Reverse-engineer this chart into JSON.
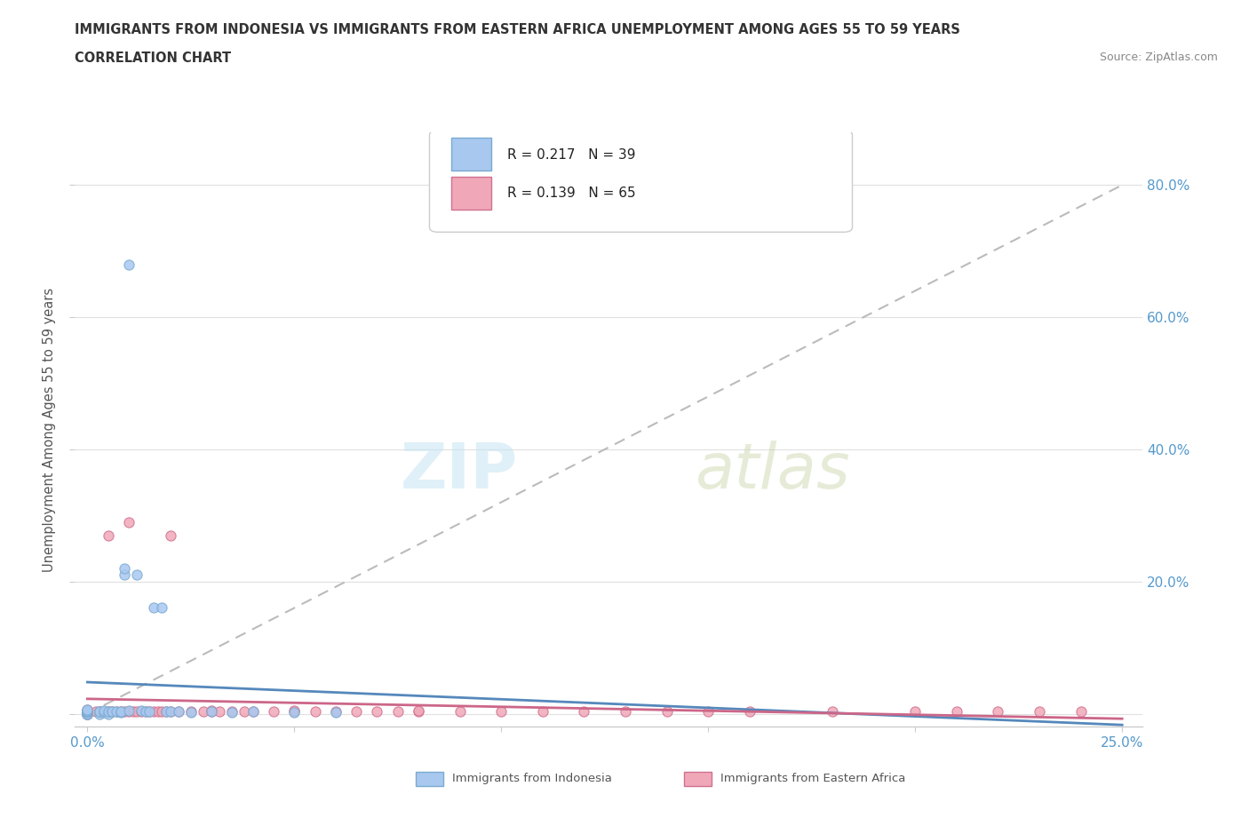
{
  "title_line1": "IMMIGRANTS FROM INDONESIA VS IMMIGRANTS FROM EASTERN AFRICA UNEMPLOYMENT AMONG AGES 55 TO 59 YEARS",
  "title_line2": "CORRELATION CHART",
  "source_text": "Source: ZipAtlas.com",
  "ylabel": "Unemployment Among Ages 55 to 59 years",
  "xlim": [
    -0.003,
    0.255
  ],
  "ylim": [
    -0.02,
    0.88
  ],
  "x_ticks": [
    0.0,
    0.25
  ],
  "x_tick_labels": [
    "0.0%",
    "25.0%"
  ],
  "y_ticks": [
    0.0,
    0.2,
    0.4,
    0.6,
    0.8
  ],
  "y_tick_labels_right": [
    "",
    "20.0%",
    "40.0%",
    "60.0%",
    "80.0%"
  ],
  "r_indonesia": 0.217,
  "n_indonesia": 39,
  "r_eastern_africa": 0.139,
  "n_eastern_africa": 65,
  "color_indonesia": "#a8c8f0",
  "color_eastern_africa": "#f0a8b8",
  "edge_indonesia": "#7aaad0",
  "edge_eastern_africa": "#d07090",
  "legend_indonesia": "Immigrants from Indonesia",
  "legend_eastern_africa": "Immigrants from Eastern Africa",
  "watermark_zip": "ZIP",
  "watermark_atlas": "atlas",
  "trend_line_color_indonesia": "#5588bb",
  "trend_line_color_eastern_africa": "#cc6688",
  "diagonal_line_color": "#bbbbbb",
  "background_color": "#ffffff",
  "grid_color": "#e0e0e0",
  "tick_color": "#5599cc",
  "title_color": "#333333",
  "indo_x": [
    0.0,
    0.0,
    0.0,
    0.0,
    0.0,
    0.0,
    0.0,
    0.0,
    0.003,
    0.003,
    0.003,
    0.004,
    0.004,
    0.005,
    0.005,
    0.006,
    0.006,
    0.007,
    0.008,
    0.008,
    0.009,
    0.009,
    0.01,
    0.012,
    0.013,
    0.014,
    0.015,
    0.016,
    0.018,
    0.019,
    0.02,
    0.022,
    0.025,
    0.03,
    0.035,
    0.04,
    0.05,
    0.06,
    0.01
  ],
  "indo_y": [
    0.0,
    0.0,
    0.0,
    0.002,
    0.003,
    0.004,
    0.005,
    0.006,
    0.0,
    0.003,
    0.004,
    0.002,
    0.005,
    0.0,
    0.003,
    0.003,
    0.004,
    0.004,
    0.002,
    0.003,
    0.21,
    0.22,
    0.005,
    0.21,
    0.005,
    0.003,
    0.004,
    0.16,
    0.16,
    0.003,
    0.004,
    0.003,
    0.002,
    0.003,
    0.002,
    0.003,
    0.002,
    0.002,
    0.68
  ],
  "ea_x": [
    0.0,
    0.0,
    0.0,
    0.0,
    0.0,
    0.0,
    0.0,
    0.0,
    0.0,
    0.0,
    0.002,
    0.003,
    0.004,
    0.005,
    0.006,
    0.007,
    0.008,
    0.009,
    0.01,
    0.011,
    0.012,
    0.013,
    0.014,
    0.015,
    0.016,
    0.017,
    0.018,
    0.019,
    0.02,
    0.022,
    0.025,
    0.028,
    0.03,
    0.032,
    0.035,
    0.038,
    0.04,
    0.045,
    0.05,
    0.055,
    0.06,
    0.065,
    0.07,
    0.075,
    0.08,
    0.09,
    0.1,
    0.11,
    0.12,
    0.13,
    0.14,
    0.15,
    0.16,
    0.18,
    0.2,
    0.21,
    0.22,
    0.23,
    0.24,
    0.005,
    0.01,
    0.02,
    0.03,
    0.05,
    0.08
  ],
  "ea_y": [
    0.0,
    0.0,
    0.0,
    0.002,
    0.003,
    0.003,
    0.004,
    0.004,
    0.005,
    0.006,
    0.003,
    0.003,
    0.004,
    0.003,
    0.004,
    0.004,
    0.003,
    0.004,
    0.003,
    0.004,
    0.003,
    0.004,
    0.003,
    0.004,
    0.003,
    0.004,
    0.003,
    0.004,
    0.003,
    0.004,
    0.003,
    0.004,
    0.004,
    0.003,
    0.004,
    0.003,
    0.004,
    0.003,
    0.004,
    0.004,
    0.004,
    0.003,
    0.004,
    0.003,
    0.004,
    0.003,
    0.004,
    0.003,
    0.004,
    0.003,
    0.004,
    0.003,
    0.004,
    0.003,
    0.004,
    0.003,
    0.004,
    0.003,
    0.004,
    0.27,
    0.29,
    0.27,
    0.005,
    0.005,
    0.005
  ]
}
